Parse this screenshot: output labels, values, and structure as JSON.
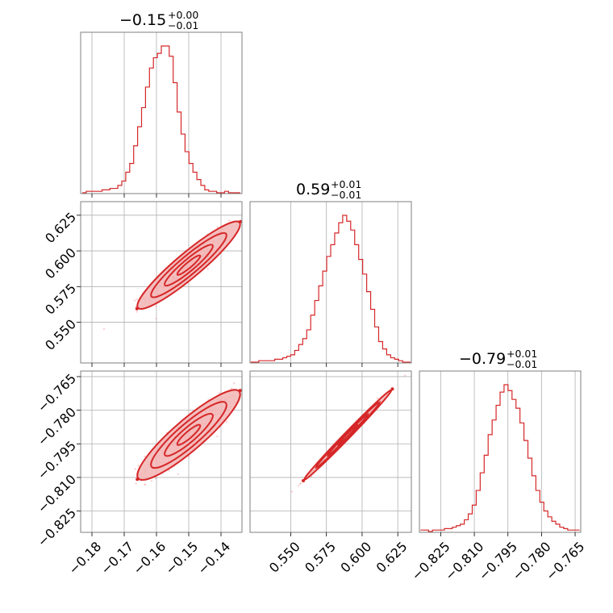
{
  "chart_data": {
    "type": "corner",
    "params": [
      {
        "median": -0.15,
        "title": {
          "base": "−0.15",
          "plus": "+0.00",
          "minus": "−0.01"
        },
        "xlim": [
          -0.1835,
          -0.1335
        ],
        "ticks": [
          -0.18,
          -0.17,
          -0.16,
          -0.15,
          -0.14
        ],
        "ticklabels": [
          "−0.18",
          "−0.17",
          "−0.16",
          "−0.15",
          "−0.14"
        ],
        "hist_range": [
          -0.183,
          -0.134
        ]
      },
      {
        "median": 0.59,
        "title": {
          "base": "0.59",
          "plus": "+0.01",
          "minus": "−0.01"
        },
        "xlim": [
          0.5215,
          0.6345
        ],
        "ticks": [
          0.55,
          0.575,
          0.6,
          0.625
        ],
        "ticklabels": [
          "0.550",
          "0.575",
          "0.600",
          "0.625"
        ],
        "hist_range": [
          0.522,
          0.634
        ]
      },
      {
        "median": -0.79,
        "title": {
          "base": "−0.79",
          "plus": "+0.01",
          "minus": "−0.01"
        },
        "xlim": [
          -0.8345,
          -0.7625
        ],
        "ticks": [
          -0.825,
          -0.81,
          -0.795,
          -0.78,
          -0.765
        ],
        "ticklabels": [
          "−0.825",
          "−0.810",
          "−0.795",
          "−0.780",
          "−0.765"
        ],
        "hist_range": [
          -0.834,
          -0.763
        ]
      }
    ],
    "histograms": [
      [
        0,
        1,
        1,
        1,
        1,
        2,
        2,
        3,
        3,
        5,
        8,
        14,
        20,
        32,
        45,
        58,
        72,
        85,
        92,
        95,
        100,
        100,
        93,
        75,
        55,
        40,
        28,
        20,
        14,
        9,
        5,
        2,
        1,
        1,
        0,
        0,
        1,
        0,
        0,
        0
      ],
      [
        0,
        0,
        1,
        1,
        1,
        1,
        2,
        2,
        3,
        4,
        5,
        8,
        12,
        16,
        22,
        32,
        42,
        52,
        62,
        72,
        80,
        88,
        95,
        100,
        96,
        90,
        80,
        70,
        60,
        48,
        36,
        24,
        14,
        9,
        5,
        3,
        2,
        1,
        0,
        0
      ],
      [
        1,
        1,
        0,
        1,
        1,
        1,
        2,
        2,
        3,
        4,
        5,
        8,
        12,
        18,
        28,
        40,
        52,
        66,
        76,
        86,
        95,
        100,
        96,
        90,
        84,
        74,
        62,
        50,
        38,
        28,
        20,
        14,
        10,
        7,
        5,
        3,
        2,
        1,
        1,
        1
      ]
    ],
    "correlations": {
      "p1_p0": 0.93,
      "p2_p0": 0.9,
      "p2_p1": 0.995
    },
    "series_color": "#d62728",
    "grid": true
  }
}
